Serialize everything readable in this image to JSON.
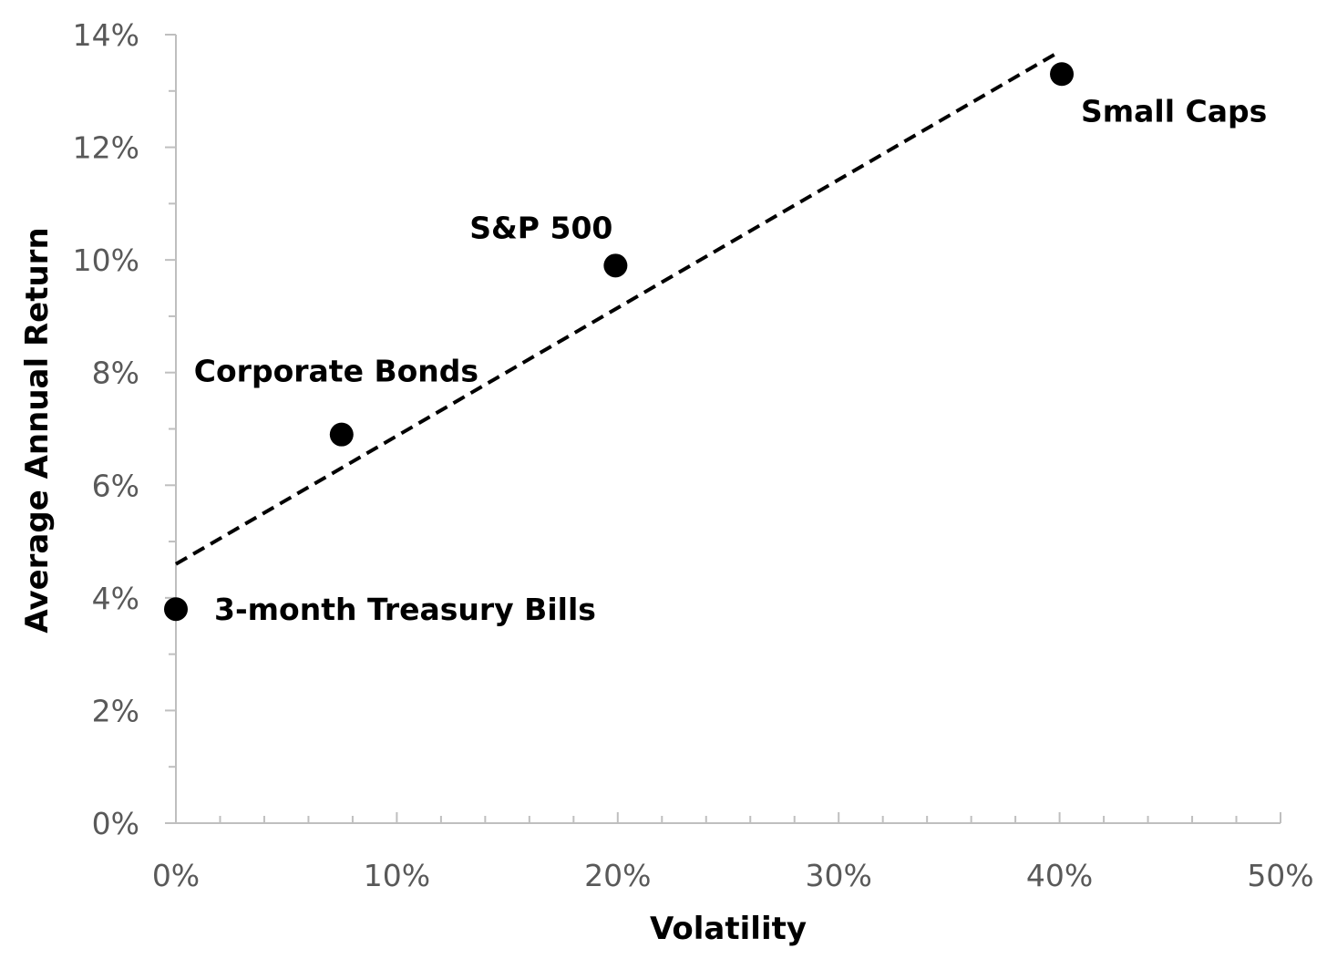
{
  "chart_data": {
    "type": "scatter",
    "title": "",
    "xlabel": "Volatility",
    "ylabel": "Average Annual Return",
    "xlim": [
      0,
      50
    ],
    "ylim": [
      0,
      14
    ],
    "x_ticks": [
      "0%",
      "10%",
      "20%",
      "30%",
      "40%",
      "50%"
    ],
    "y_ticks": [
      "0%",
      "2%",
      "4%",
      "6%",
      "8%",
      "10%",
      "12%",
      "14%"
    ],
    "grid": false,
    "legend": "none",
    "series": [
      {
        "points": [
          {
            "label": "3-month Treasury Bills",
            "x": 0,
            "y": 3.8
          },
          {
            "label": "Corporate Bonds",
            "x": 7.5,
            "y": 6.9
          },
          {
            "label": "S&P 500",
            "x": 19.9,
            "y": 9.9
          },
          {
            "label": "Small Caps",
            "x": 40.1,
            "y": 13.3
          }
        ]
      }
    ],
    "trendline": {
      "style": "dashed",
      "start": {
        "x": 0,
        "y": 4.6
      },
      "end": {
        "x": 40,
        "y": 13.7
      }
    },
    "colors": {
      "point": "#000000",
      "axis": "#BFBFBF",
      "tick_text": "#595959",
      "title_text": "#000000"
    }
  }
}
